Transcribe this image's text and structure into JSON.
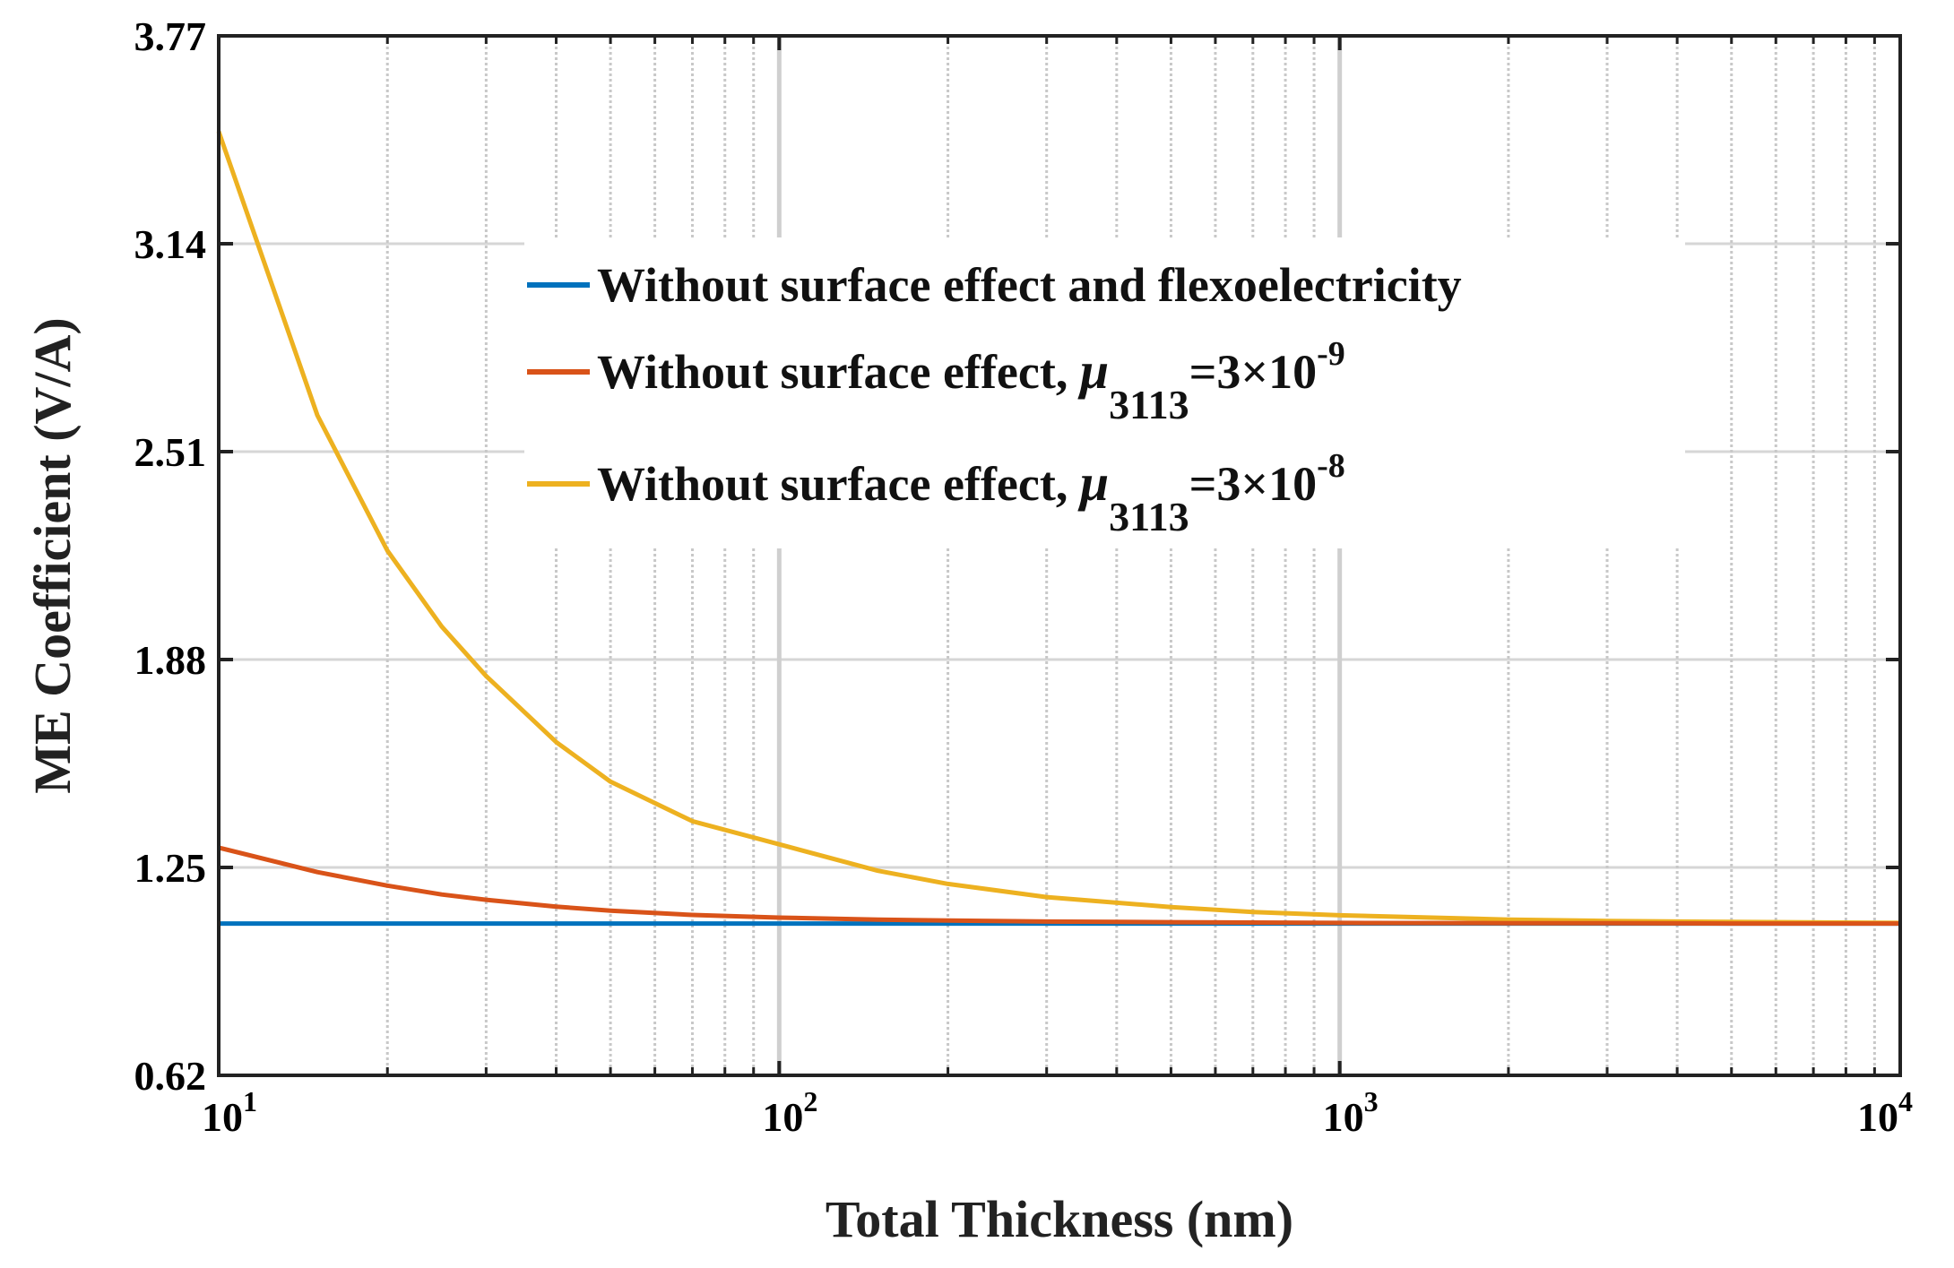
{
  "chart_data": {
    "type": "line",
    "title": "",
    "xlabel": "Total Thickness (nm)",
    "ylabel": "ME Coefficient (V/A)",
    "xscale": "log",
    "xlim": [
      10,
      10000
    ],
    "ylim": [
      0.62,
      3.77
    ],
    "y_ticks": [
      "0.62",
      "1.25",
      "1.88",
      "2.51",
      "3.14",
      "3.77"
    ],
    "x_ticks": [
      {
        "value": 10,
        "base": "10",
        "exp": "1"
      },
      {
        "value": 100,
        "base": "10",
        "exp": "2"
      },
      {
        "value": 1000,
        "base": "10",
        "exp": "3"
      },
      {
        "value": 10000,
        "base": "10",
        "exp": "4"
      }
    ],
    "grid": true,
    "legend_position": "top-center",
    "x": [
      10,
      15,
      20,
      25,
      30,
      40,
      50,
      70,
      100,
      150,
      200,
      300,
      500,
      700,
      1000,
      2000,
      3000,
      5000,
      10000
    ],
    "series": [
      {
        "name": "Without surface effect and flexoelectricity",
        "label_text": "Without surface effect and flexoelectricity",
        "color": "#0072BD",
        "values": [
          1.08,
          1.08,
          1.08,
          1.08,
          1.08,
          1.08,
          1.08,
          1.08,
          1.08,
          1.08,
          1.08,
          1.08,
          1.08,
          1.08,
          1.08,
          1.08,
          1.08,
          1.08,
          1.08
        ]
      },
      {
        "name": "Without surface effect, μ3113=3×10^-9",
        "label_text": "Without surface effect, ",
        "mu": "μ",
        "mu_sub": "3113",
        "eq_text": "=3×10",
        "eq_sup": "-9",
        "color": "#D95319",
        "values": [
          1.31,
          1.236,
          1.195,
          1.168,
          1.152,
          1.131,
          1.119,
          1.106,
          1.098,
          1.092,
          1.089,
          1.086,
          1.084,
          1.083,
          1.082,
          1.081,
          1.081,
          1.08,
          1.08
        ]
      },
      {
        "name": "Without surface effect, μ3113=3×10^-8",
        "label_text": "Without surface effect, ",
        "mu": "μ",
        "mu_sub": "3113",
        "eq_text": "=3×10",
        "eq_sup": "-8",
        "color": "#EDB120",
        "values": [
          3.48,
          2.62,
          2.21,
          1.98,
          1.83,
          1.63,
          1.51,
          1.39,
          1.32,
          1.24,
          1.2,
          1.16,
          1.13,
          1.115,
          1.105,
          1.092,
          1.088,
          1.085,
          1.082
        ]
      }
    ]
  }
}
